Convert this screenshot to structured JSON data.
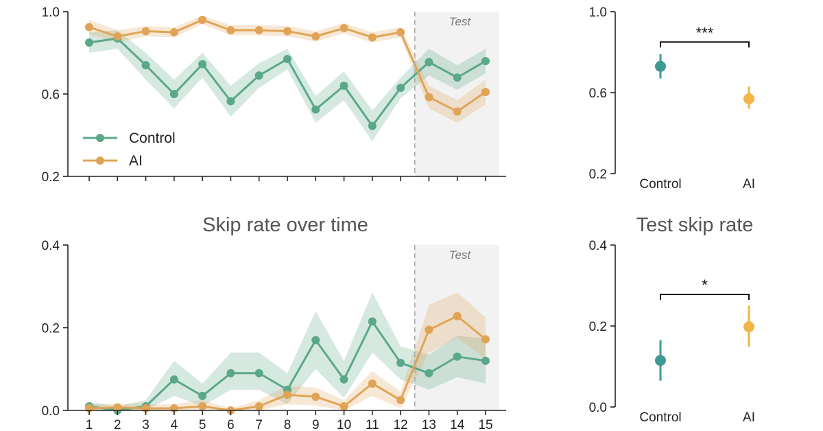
{
  "colors": {
    "control_line": "#5aa889",
    "ai_line": "#e0a456",
    "control_band": "#5aa889",
    "ai_band": "#e0a456",
    "control_point": "#3f9a94",
    "ai_point": "#f0b545",
    "test_region": "#f2f2f2",
    "axis": "#222222",
    "divider": "#aaaaaa"
  },
  "chart_data": [
    {
      "id": "top_left",
      "type": "line",
      "title": "",
      "x": [
        1,
        2,
        3,
        4,
        5,
        6,
        7,
        8,
        9,
        10,
        11,
        12,
        13,
        14,
        15
      ],
      "xtick_labels": [],
      "ylim": [
        0.2,
        1.0
      ],
      "yticks": [
        0.2,
        0.6,
        1.0
      ],
      "ytick_labels": [
        "0.2",
        "0.6",
        "1.0"
      ],
      "test_start": 12.5,
      "test_label": "Test",
      "legend": {
        "placement": "lower-left",
        "entries": [
          "Control",
          "AI"
        ]
      },
      "series": [
        {
          "name": "Control",
          "values": [
            0.85,
            0.87,
            0.74,
            0.6,
            0.745,
            0.565,
            0.69,
            0.77,
            0.525,
            0.64,
            0.445,
            0.63,
            0.755,
            0.68,
            0.76
          ],
          "lower": [
            0.8,
            0.82,
            0.67,
            0.53,
            0.68,
            0.49,
            0.63,
            0.72,
            0.46,
            0.57,
            0.37,
            0.58,
            0.69,
            0.62,
            0.7
          ],
          "upper": [
            0.9,
            0.91,
            0.8,
            0.67,
            0.8,
            0.64,
            0.75,
            0.82,
            0.59,
            0.71,
            0.52,
            0.68,
            0.82,
            0.74,
            0.82
          ]
        },
        {
          "name": "AI",
          "values": [
            0.925,
            0.88,
            0.905,
            0.9,
            0.96,
            0.91,
            0.91,
            0.905,
            0.88,
            0.92,
            0.875,
            0.9,
            0.585,
            0.515,
            0.61
          ],
          "lower": [
            0.89,
            0.85,
            0.88,
            0.875,
            0.94,
            0.885,
            0.885,
            0.88,
            0.855,
            0.895,
            0.85,
            0.875,
            0.53,
            0.46,
            0.55
          ],
          "upper": [
            0.96,
            0.91,
            0.93,
            0.925,
            0.98,
            0.935,
            0.935,
            0.93,
            0.905,
            0.945,
            0.9,
            0.925,
            0.64,
            0.57,
            0.67
          ]
        }
      ]
    },
    {
      "id": "top_right",
      "type": "scatter",
      "title": "",
      "categories": [
        "Control",
        "AI"
      ],
      "ylim": [
        0.2,
        1.0
      ],
      "yticks": [
        0.2,
        0.6,
        1.0
      ],
      "ytick_labels": [
        "0.2",
        "0.6",
        "1.0"
      ],
      "values": [
        0.73,
        0.57
      ],
      "error_low": [
        0.67,
        0.52
      ],
      "error_high": [
        0.79,
        0.63
      ],
      "significance": {
        "label": "***",
        "bracket_y": 0.85
      }
    },
    {
      "id": "bottom_left",
      "type": "line",
      "title": "Skip rate over time",
      "x": [
        1,
        2,
        3,
        4,
        5,
        6,
        7,
        8,
        9,
        10,
        11,
        12,
        13,
        14,
        15
      ],
      "xtick_labels": [
        "1",
        "2",
        "3",
        "4",
        "5",
        "6",
        "7",
        "8",
        "9",
        "10",
        "11",
        "12",
        "13",
        "14",
        "15"
      ],
      "ylim": [
        0.0,
        0.4
      ],
      "yticks": [
        0.0,
        0.2,
        0.4
      ],
      "ytick_labels": [
        "0.0",
        "0.2",
        "0.4"
      ],
      "test_start": 12.5,
      "test_label": "Test",
      "series": [
        {
          "name": "Control",
          "values": [
            0.01,
            0.0,
            0.01,
            0.075,
            0.035,
            0.09,
            0.09,
            0.05,
            0.17,
            0.075,
            0.215,
            0.115,
            0.09,
            0.13,
            0.12
          ],
          "lower": [
            0.0,
            0.0,
            0.0,
            0.035,
            0.01,
            0.05,
            0.05,
            0.015,
            0.1,
            0.03,
            0.14,
            0.075,
            0.05,
            0.08,
            0.065
          ],
          "upper": [
            0.02,
            0.01,
            0.025,
            0.12,
            0.065,
            0.14,
            0.14,
            0.09,
            0.24,
            0.12,
            0.285,
            0.155,
            0.135,
            0.18,
            0.175
          ]
        },
        {
          "name": "AI",
          "values": [
            0.005,
            0.007,
            0.005,
            0.005,
            0.01,
            0.0,
            0.01,
            0.038,
            0.033,
            0.01,
            0.065,
            0.025,
            0.195,
            0.228,
            0.172
          ],
          "lower": [
            0.0,
            0.0,
            0.0,
            0.0,
            0.0,
            0.0,
            0.0,
            0.015,
            0.012,
            0.0,
            0.035,
            0.005,
            0.14,
            0.175,
            0.125
          ],
          "upper": [
            0.015,
            0.017,
            0.015,
            0.015,
            0.025,
            0.005,
            0.025,
            0.06,
            0.055,
            0.025,
            0.095,
            0.045,
            0.255,
            0.285,
            0.225
          ]
        }
      ]
    },
    {
      "id": "bottom_right",
      "type": "scatter",
      "title": "Test skip rate",
      "categories": [
        "Control",
        "AI"
      ],
      "ylim": [
        0.0,
        0.4
      ],
      "yticks": [
        0.0,
        0.2,
        0.4
      ],
      "ytick_labels": [
        "0.0",
        "0.2",
        "0.4"
      ],
      "values": [
        0.115,
        0.198
      ],
      "error_low": [
        0.065,
        0.148
      ],
      "error_high": [
        0.165,
        0.25
      ],
      "significance": {
        "label": "*",
        "bracket_y": 0.278
      }
    }
  ]
}
